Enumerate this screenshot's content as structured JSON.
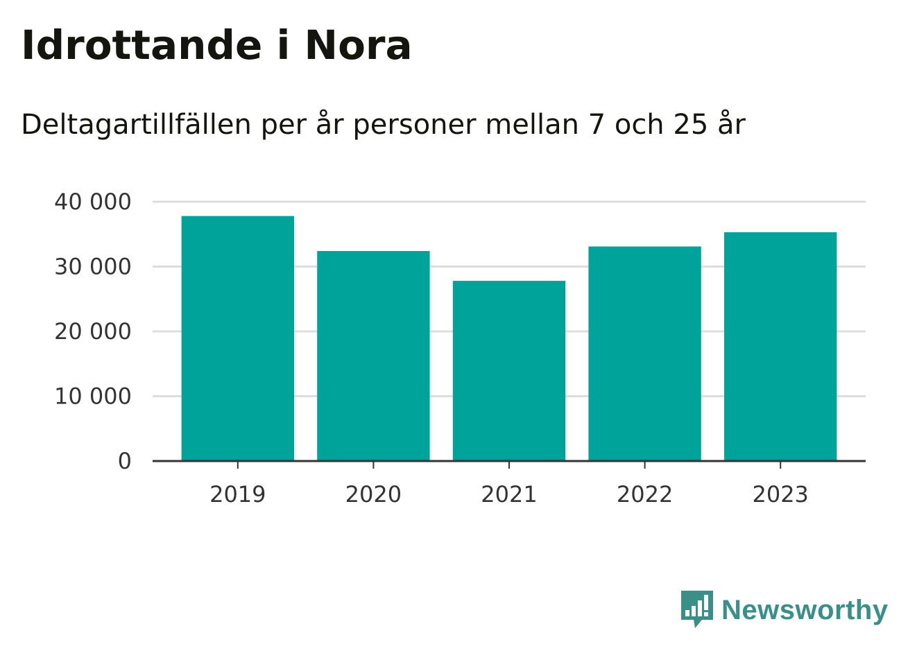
{
  "title": "Idrottande i Nora",
  "subtitle": "Deltagartillfällen per år personer mellan 7 och 25 år",
  "brand": {
    "name": "Newsworthy",
    "color": "#3a8f89"
  },
  "colors": {
    "bar": "#00a39a",
    "grid": "#dddddd",
    "axis": "#333333"
  },
  "chart_data": {
    "type": "bar",
    "categories": [
      "2019",
      "2020",
      "2021",
      "2022",
      "2023"
    ],
    "values": [
      37800,
      32400,
      27800,
      33100,
      35300
    ],
    "ylim": [
      0,
      40000
    ],
    "yticks": [
      0,
      10000,
      20000,
      30000,
      40000
    ],
    "ytick_labels": [
      "0",
      "10 000",
      "20 000",
      "30 000",
      "40 000"
    ],
    "grid": true,
    "legend": "none",
    "title": "",
    "xlabel": "",
    "ylabel": ""
  }
}
